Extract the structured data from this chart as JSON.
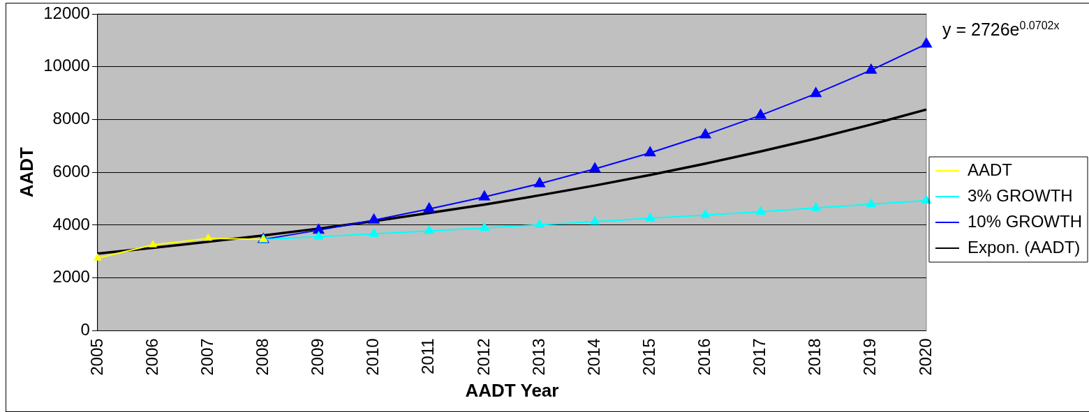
{
  "chart_data": {
    "type": "line",
    "xlabel": "AADT Year",
    "ylabel": "AADT",
    "categories": [
      "2005",
      "2006",
      "2007",
      "2008",
      "2009",
      "2010",
      "2011",
      "2012",
      "2013",
      "2014",
      "2015",
      "2016",
      "2017",
      "2018",
      "2019",
      "2020"
    ],
    "series": [
      {
        "name": "AADT",
        "color": "#ffff00",
        "values": [
          2750,
          3250,
          3500,
          3460,
          null,
          null,
          null,
          null,
          null,
          null,
          null,
          null,
          null,
          null,
          null,
          null
        ]
      },
      {
        "name": "3% GROWTH",
        "color": "#00ffff",
        "values": [
          null,
          null,
          null,
          3460,
          3560,
          3670,
          3780,
          3890,
          4010,
          4130,
          4260,
          4380,
          4510,
          4650,
          4790,
          4930
        ]
      },
      {
        "name": "10% GROWTH",
        "color": "#0000ff",
        "values": [
          null,
          null,
          null,
          3460,
          3810,
          4190,
          4610,
          5070,
          5570,
          6130,
          6740,
          7420,
          8160,
          8980,
          9870,
          10860
        ]
      },
      {
        "name": "Expon. (AADT)",
        "color": "#000000",
        "marker": "none",
        "values": [
          2920,
          3140,
          3370,
          3610,
          3870,
          4150,
          4460,
          4780,
          5130,
          5500,
          5900,
          6330,
          6790,
          7280,
          7810,
          8380
        ]
      }
    ],
    "ylim": [
      0,
      12000
    ],
    "yticks": [
      0,
      2000,
      4000,
      6000,
      8000,
      10000,
      12000
    ],
    "grid": "y",
    "legend": "right",
    "marker": "triangle",
    "annotations": [
      "y = 2726e$^{0.0702x}$"
    ]
  }
}
